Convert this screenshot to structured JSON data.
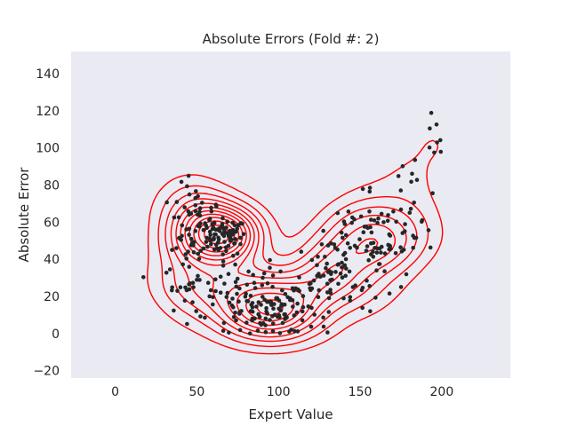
{
  "chart_data": {
    "type": "scatter",
    "title": "Absolute Errors (Fold #: 2)",
    "xlabel": "Expert Value",
    "ylabel": "Absolute Error",
    "xlim": [
      -27,
      242
    ],
    "ylim": [
      -24,
      152
    ],
    "xticks": [
      0,
      50,
      100,
      150,
      200
    ],
    "yticks": [
      -20,
      0,
      20,
      40,
      60,
      80,
      100,
      120,
      140
    ],
    "grid": false,
    "background_color": "#eaeaf2",
    "point_color": "#262626",
    "contour_color": "#ff0000",
    "clusters": [
      {
        "x": 68,
        "y": 52,
        "sx": 6,
        "sy": 5,
        "n": 70
      },
      {
        "x": 50,
        "y": 60,
        "sx": 8,
        "sy": 10,
        "n": 55
      },
      {
        "x": 42,
        "y": 38,
        "sx": 8,
        "sy": 12,
        "n": 25
      },
      {
        "x": 75,
        "y": 20,
        "sx": 18,
        "sy": 9,
        "n": 70
      },
      {
        "x": 95,
        "y": 12,
        "sx": 10,
        "sy": 6,
        "n": 60
      },
      {
        "x": 115,
        "y": 22,
        "sx": 12,
        "sy": 10,
        "n": 50
      },
      {
        "x": 140,
        "y": 42,
        "sx": 10,
        "sy": 12,
        "n": 55
      },
      {
        "x": 162,
        "y": 48,
        "sx": 10,
        "sy": 12,
        "n": 55
      },
      {
        "x": 180,
        "y": 68,
        "sx": 10,
        "sy": 14,
        "n": 22
      },
      {
        "x": 195,
        "y": 105,
        "sx": 4,
        "sy": 12,
        "n": 8
      }
    ],
    "contour_levels": 11
  }
}
